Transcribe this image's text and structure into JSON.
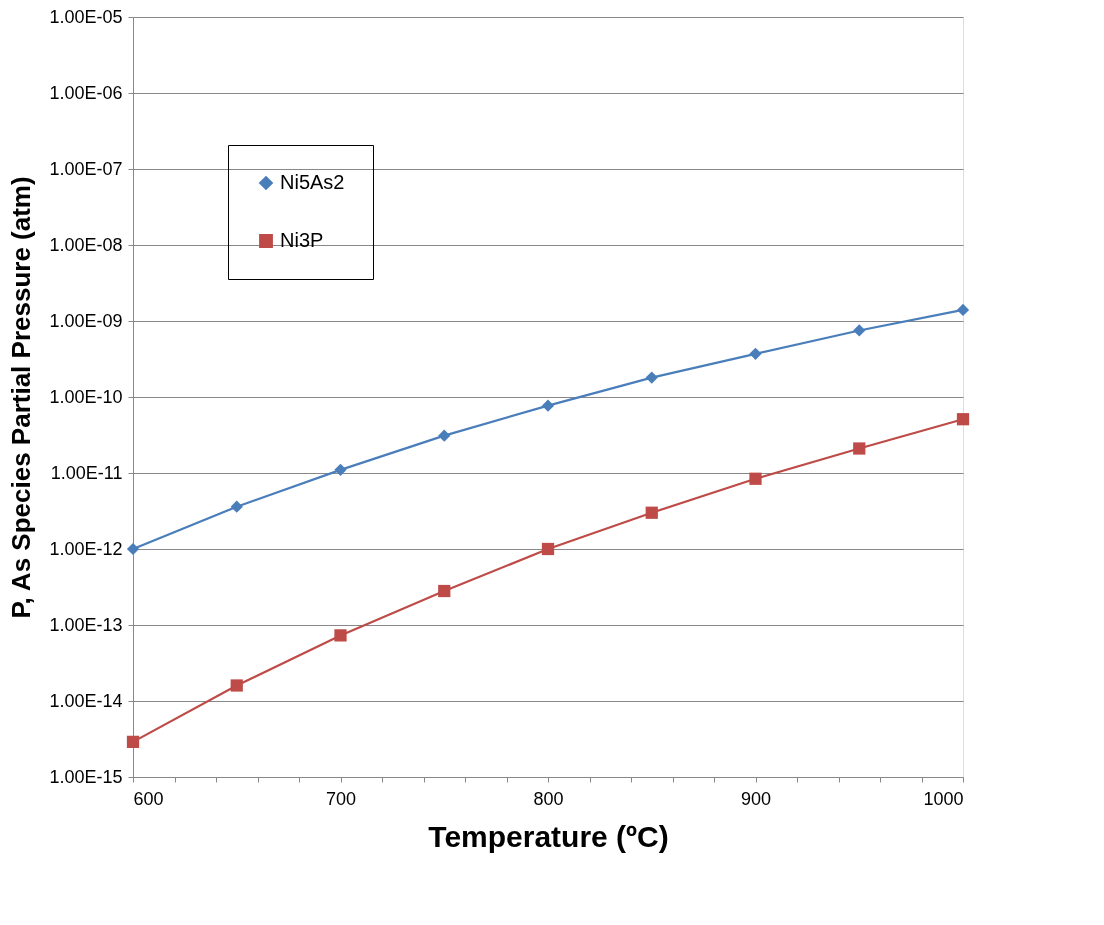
{
  "chart_data": {
    "type": "line",
    "xlabel": "Temperature (ºC)",
    "ylabel": "P, As Species Partial Pressure (atm)",
    "x": [
      600,
      650,
      700,
      750,
      800,
      850,
      900,
      950,
      1000
    ],
    "series": [
      {
        "name": "Ni5As2",
        "color": "#4a7ebb",
        "marker": "diamond",
        "values": [
          1e-12,
          3.6e-12,
          1.1e-11,
          3.1e-11,
          7.7e-11,
          1.8e-10,
          3.7e-10,
          7.5e-10,
          1.4e-09
        ]
      },
      {
        "name": "Ni3P",
        "color": "#be4b48",
        "marker": "square",
        "values": [
          2.9e-15,
          1.6e-14,
          7.3e-14,
          2.8e-13,
          1e-12,
          3e-12,
          8.4e-12,
          2.1e-11,
          5.1e-11
        ]
      }
    ],
    "xlim": [
      600,
      1000
    ],
    "xticks": [
      600,
      {
        "value": 620,
        "label": null
      },
      {
        "value": 640,
        "label": null
      },
      {
        "value": 660,
        "label": null
      },
      {
        "value": 680,
        "label": null
      },
      700,
      {
        "value": 720,
        "label": null
      },
      {
        "value": 740,
        "label": null
      },
      {
        "value": 760,
        "label": null
      },
      {
        "value": 780,
        "label": null
      },
      800,
      {
        "value": 820,
        "label": null
      },
      {
        "value": 840,
        "label": null
      },
      {
        "value": 860,
        "label": null
      },
      {
        "value": 880,
        "label": null
      },
      900,
      {
        "value": 920,
        "label": null
      },
      {
        "value": 940,
        "label": null
      },
      {
        "value": 960,
        "label": null
      },
      {
        "value": 980,
        "label": null
      },
      1000
    ],
    "ylim": [
      1e-15,
      1e-05
    ],
    "yticks": [
      {
        "value": 1e-15,
        "label": "1.00E-15"
      },
      {
        "value": 1e-14,
        "label": "1.00E-14"
      },
      {
        "value": 1e-13,
        "label": "1.00E-13"
      },
      {
        "value": 1e-12,
        "label": "1.00E-12"
      },
      {
        "value": 1e-11,
        "label": "1.00E-11"
      },
      {
        "value": 1e-10,
        "label": "1.00E-10"
      },
      {
        "value": 1e-09,
        "label": "1.00E-09"
      },
      {
        "value": 1e-08,
        "label": "1.00E-08"
      },
      {
        "value": 1e-07,
        "label": "1.00E-07"
      },
      {
        "value": 1e-06,
        "label": "1.00E-06"
      },
      {
        "value": 1e-05,
        "label": "1.00E-05"
      }
    ],
    "log": "y",
    "grid": "y",
    "legend": "top left",
    "line_style": "solid"
  }
}
